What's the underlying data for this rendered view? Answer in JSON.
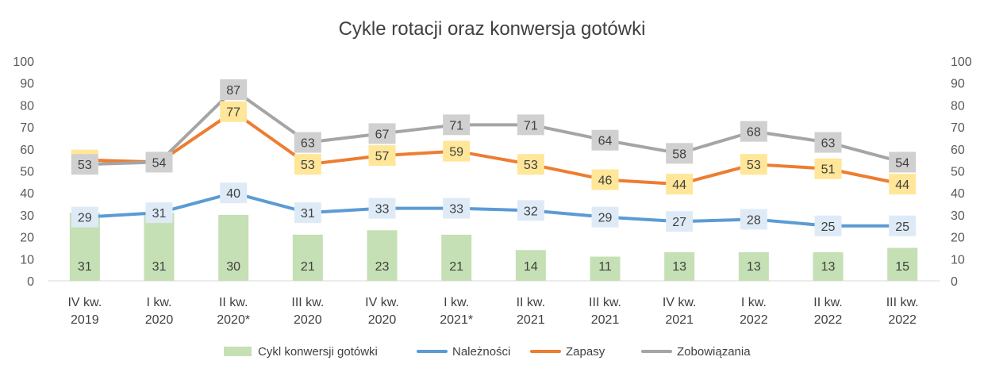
{
  "chart_data": {
    "type": "bar+line",
    "title": "Cykle rotacji oraz konwersja gotówki",
    "categories": [
      [
        "IV kw.",
        "2019"
      ],
      [
        "I kw.",
        "2020"
      ],
      [
        "II kw.",
        "2020*"
      ],
      [
        "III kw.",
        "2020"
      ],
      [
        "IV kw.",
        "2020"
      ],
      [
        "I kw.",
        "2021*"
      ],
      [
        "II kw.",
        "2021"
      ],
      [
        "III kw.",
        "2021"
      ],
      [
        "IV kw.",
        "2021"
      ],
      [
        "I kw.",
        "2022"
      ],
      [
        "II kw.",
        "2022"
      ],
      [
        "III kw.",
        "2022"
      ]
    ],
    "ylim": [
      0,
      100
    ],
    "yticks": [
      0,
      10,
      20,
      30,
      40,
      50,
      60,
      70,
      80,
      90,
      100
    ],
    "secondary_ylim": [
      0,
      100
    ],
    "grid": false,
    "legend_position": "bottom",
    "series": [
      {
        "name": "Cykl konwersji gotówki",
        "kind": "bar",
        "color": "#c5e0b4",
        "label_bg": "",
        "values": [
          31,
          31,
          30,
          21,
          23,
          21,
          14,
          11,
          13,
          13,
          13,
          15
        ]
      },
      {
        "name": "Należności",
        "kind": "line",
        "color": "#5b9bd5",
        "label_bg": "#deebf7",
        "values": [
          29,
          31,
          40,
          31,
          33,
          33,
          32,
          29,
          27,
          28,
          25,
          25
        ]
      },
      {
        "name": "Zapasy",
        "kind": "line",
        "color": "#ed7d31",
        "label_bg": "#ffe699",
        "values": [
          55,
          54,
          77,
          53,
          57,
          59,
          53,
          46,
          44,
          53,
          51,
          44
        ]
      },
      {
        "name": "Zobowiązania",
        "kind": "line",
        "color": "#a5a5a5",
        "label_bg": "#d0d0d0",
        "values": [
          53,
          54,
          87,
          63,
          67,
          71,
          71,
          64,
          58,
          68,
          63,
          54
        ]
      }
    ]
  }
}
